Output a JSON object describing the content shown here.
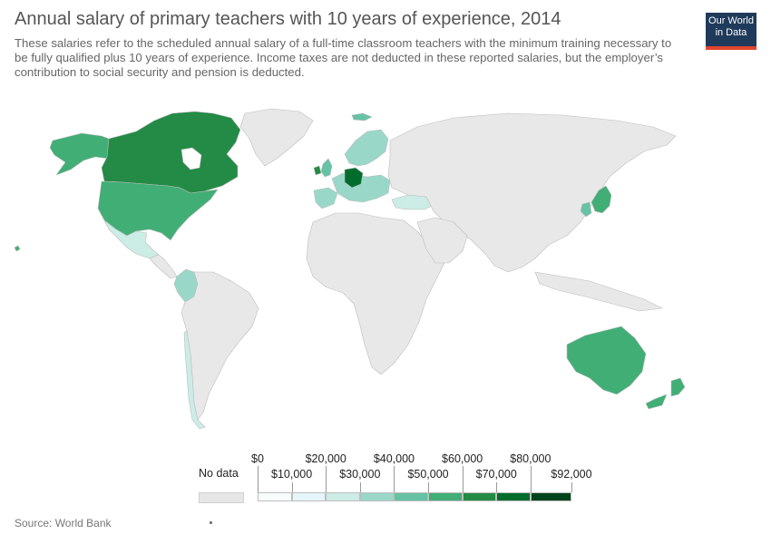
{
  "header": {
    "title": "Annual salary of primary teachers with 10 years of experience, 2014",
    "subtitle": "These salaries refer to the scheduled annual salary of a full-time classroom teachers with the minimum training necessary to be fully qualified plus 10 years of experience. Income taxes are not deducted in these reported salaries, but the employer’s contribution to social security and pension is deducted."
  },
  "logo": {
    "line1": "Our World",
    "line2": "in Data"
  },
  "legend": {
    "no_data_label": "No data",
    "upper_labels": [
      "$0",
      "$20,000",
      "$40,000",
      "$60,000",
      "$80,000"
    ],
    "lower_labels": [
      "$10,000",
      "$30,000",
      "$50,000",
      "$70,000",
      "$92,000"
    ],
    "bins": [
      {
        "from": 0,
        "to": 10000,
        "color": "#f7fcfd"
      },
      {
        "from": 10000,
        "to": 20000,
        "color": "#e5f5f9"
      },
      {
        "from": 20000,
        "to": 30000,
        "color": "#ccece6"
      },
      {
        "from": 30000,
        "to": 40000,
        "color": "#99d8c9"
      },
      {
        "from": 40000,
        "to": 50000,
        "color": "#66c2a4"
      },
      {
        "from": 50000,
        "to": 60000,
        "color": "#41ae76"
      },
      {
        "from": 60000,
        "to": 70000,
        "color": "#238b45"
      },
      {
        "from": 70000,
        "to": 80000,
        "color": "#006d2c"
      },
      {
        "from": 80000,
        "to": 92000,
        "color": "#00441b"
      }
    ],
    "no_data_color": "#e6e6e6"
  },
  "source": "Source: World Bank",
  "map_colors": {
    "land_no_data": "#e8e8e8",
    "border": "#bdbdbd",
    "canada": "#238b45",
    "usa": "#41ae76",
    "alaska": "#41ae76",
    "mexico": "#ccece6",
    "colombia": "#99d8c9",
    "chile": "#ccece6",
    "australia": "#41ae76",
    "new_zealand": "#41ae76",
    "japan": "#41ae76",
    "south_korea": "#66c2a4",
    "germany": "#006d2c",
    "scandinavia": "#99d8c9",
    "iberia": "#99d8c9",
    "ireland": "#238b45",
    "uk": "#66c2a4",
    "turkey": "#ccece6",
    "central_europe": "#99d8c9",
    "iceland": "#66c2a4"
  }
}
